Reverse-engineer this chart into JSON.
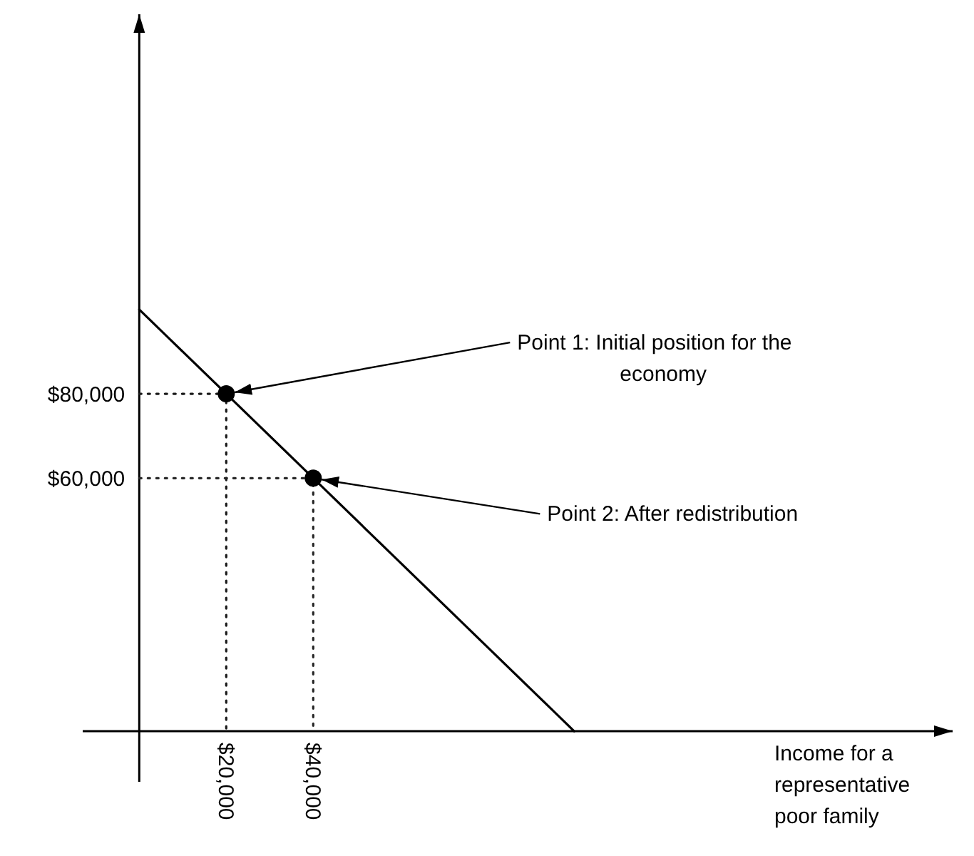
{
  "chart_data": {
    "type": "line",
    "xlabel": "Income for a representative poor family",
    "xlim": [
      -13000,
      187000
    ],
    "ylim": [
      -12000,
      170000
    ],
    "xticks": [
      {
        "value": 20000,
        "label": "$20,000"
      },
      {
        "value": 40000,
        "label": "$40,000"
      }
    ],
    "yticks": [
      {
        "value": 60000,
        "label": "$60,000"
      },
      {
        "value": 80000,
        "label": "$80,000"
      }
    ],
    "grid": false,
    "series": [
      {
        "color": "#000000",
        "x": [
          0,
          100000
        ],
        "values": [
          100000,
          0
        ],
        "line_style": "solid",
        "marker": "none"
      },
      {
        "color": "#1a1a1a",
        "x": [
          0,
          20000,
          20000
        ],
        "values": [
          80000,
          80000,
          0
        ],
        "line_style": "dotted",
        "marker": "none"
      },
      {
        "color": "#262626",
        "x": [
          0,
          40000,
          40000
        ],
        "values": [
          60000,
          60000,
          0
        ],
        "line_style": "dotted",
        "marker": "none"
      },
      {
        "type": "scatter",
        "color": "#000000",
        "x": [
          20000,
          40000
        ],
        "values": [
          80000,
          60000
        ],
        "marker": "circle"
      }
    ],
    "annotations": [
      {
        "text": "Point 1: Initial position for the economy",
        "x": 20000,
        "y": 80000
      },
      {
        "text": "Point 2: After redistribution",
        "x": 40000,
        "y": 60000
      }
    ]
  }
}
